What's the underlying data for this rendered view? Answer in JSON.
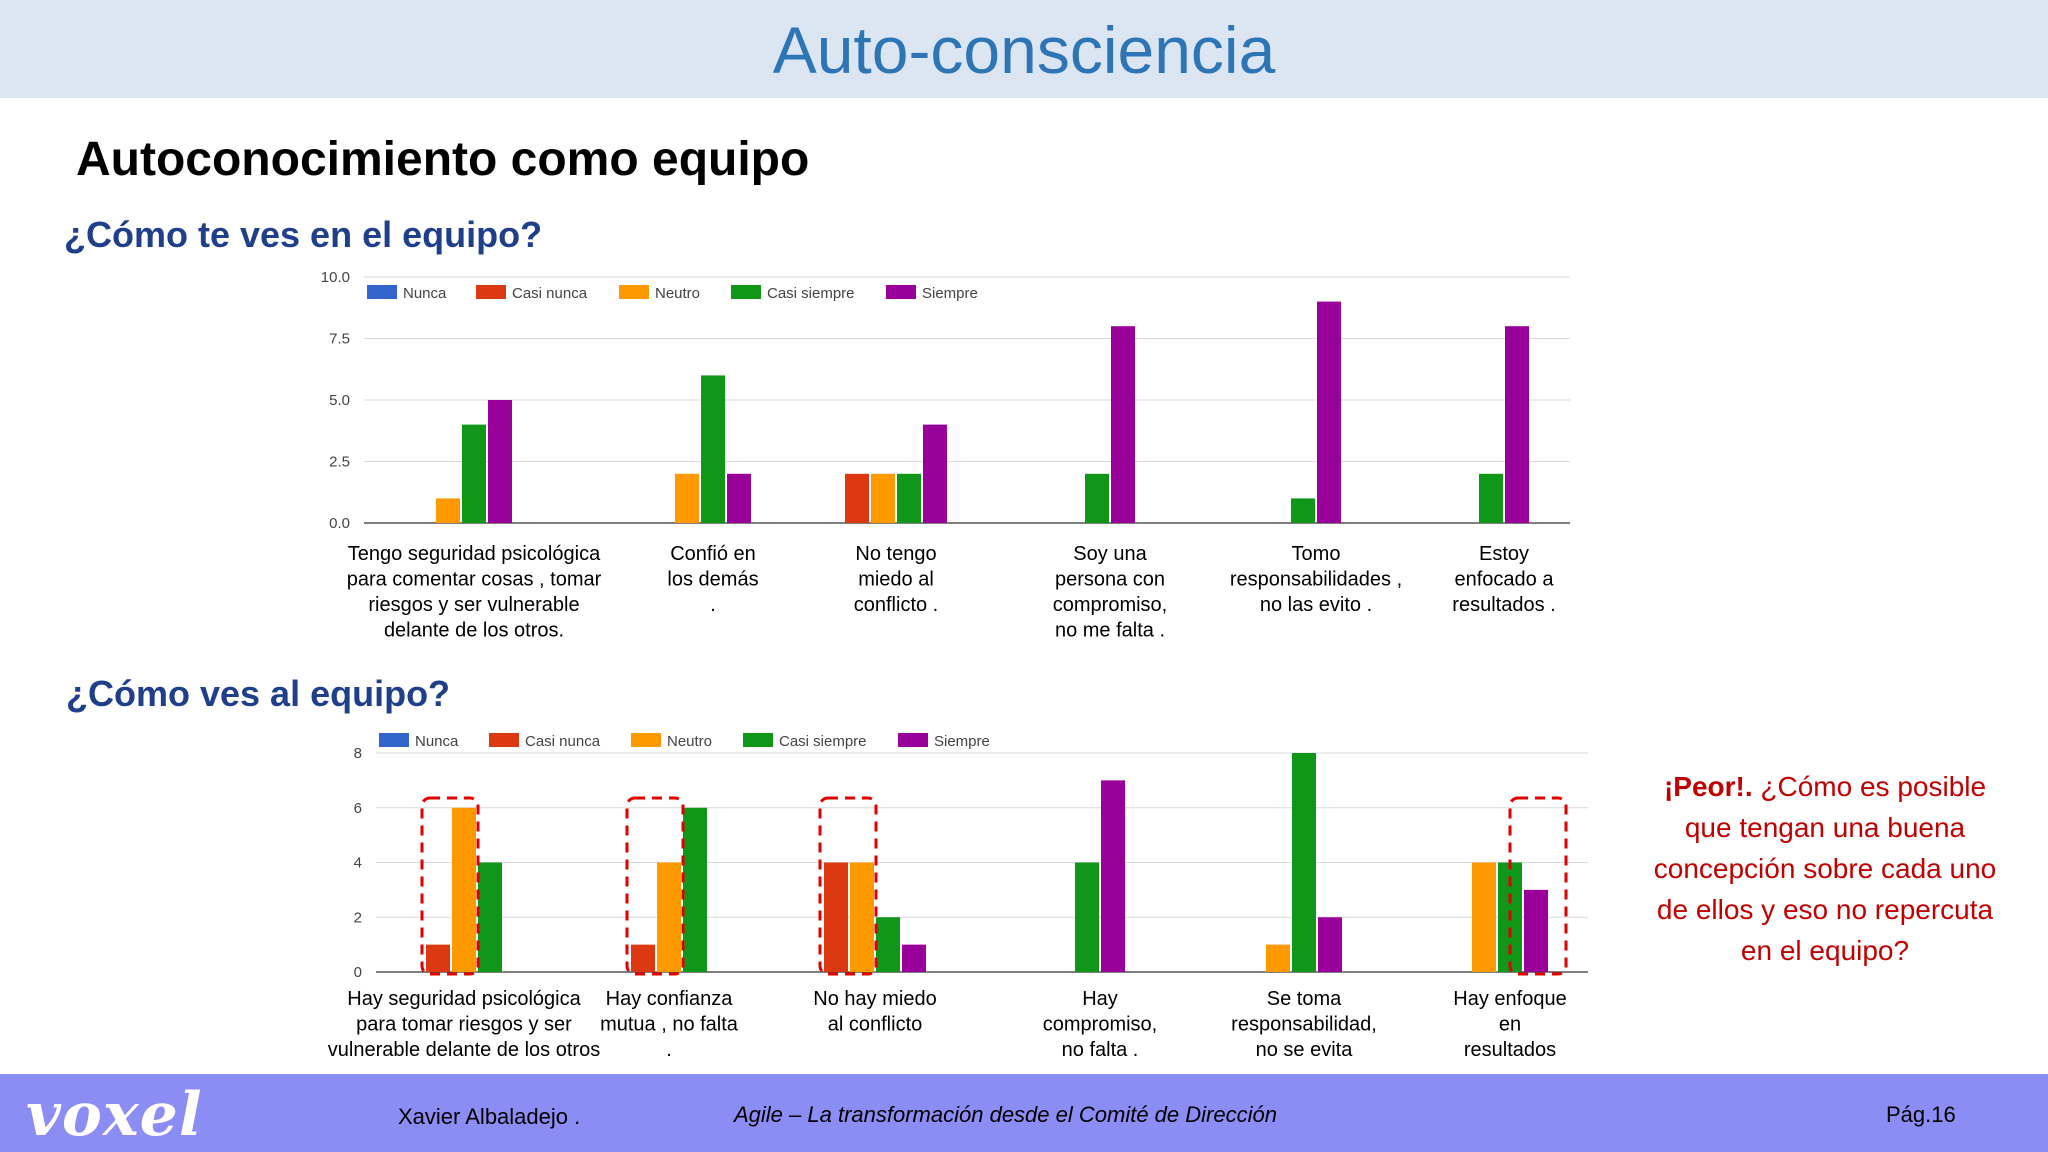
{
  "slide": {
    "title": "Auto-consciencia",
    "subtitle": "Autoconocimiento como equipo",
    "question1": "¿Cómo te ves en el equipo?",
    "question2": "¿Cómo ves al equipo?",
    "note_bold": "¡Peor!.",
    "note_text": "¿Cómo es posible que tengan una buena concepción sobre cada uno de ellos y eso no repercuta en el equipo?"
  },
  "footer": {
    "logo": "voxel",
    "author": "Xavier Albaladejo .",
    "title": "Agile – La transformación desde el Comité de Dirección",
    "page": "Pág.16"
  },
  "colors": {
    "Nunca": "#3366cc",
    "Casi nunca": "#dc3912",
    "Neutro": "#ff9900",
    "Casi siempre": "#109618",
    "Siempre": "#990099",
    "highlight": "#e00000"
  },
  "chart_data": [
    {
      "type": "bar",
      "legend_position": "top-left",
      "ylim": [
        0,
        10
      ],
      "yticks": [
        "0.0",
        "2.5",
        "5.0",
        "7.5",
        "10.0"
      ],
      "categories": [
        [
          "Tengo seguridad psicológica",
          "para comentar cosas , tomar",
          "riesgos y ser vulnerable",
          "delante de los otros."
        ],
        [
          "Confió en",
          "los demás",
          "."
        ],
        [
          "No tengo",
          "miedo al",
          "conflicto ."
        ],
        [
          "Soy una",
          "persona con",
          "compromiso,",
          "no me falta ."
        ],
        [
          "Tomo",
          "responsabilidades ,",
          "no las evito ."
        ],
        [
          "Estoy",
          "enfocado a",
          "resultados ."
        ]
      ],
      "series": [
        {
          "name": "Nunca",
          "values": [
            0,
            0,
            0,
            0,
            0,
            0
          ]
        },
        {
          "name": "Casi nunca",
          "values": [
            0,
            0,
            2,
            0,
            0,
            0
          ]
        },
        {
          "name": "Neutro",
          "values": [
            1,
            2,
            2,
            0,
            0,
            0
          ]
        },
        {
          "name": "Casi siempre",
          "values": [
            4,
            6,
            2,
            2,
            1,
            2
          ]
        },
        {
          "name": "Siempre",
          "values": [
            5,
            2,
            4,
            8,
            9,
            8
          ]
        }
      ]
    },
    {
      "type": "bar",
      "legend_position": "top-left",
      "ylim": [
        0,
        8
      ],
      "yticks": [
        "0",
        "2",
        "4",
        "6",
        "8"
      ],
      "categories": [
        [
          "Hay seguridad psicológica",
          "para tomar riesgos y ser",
          "vulnerable delante de los otros"
        ],
        [
          "Hay confianza",
          "mutua , no falta",
          "."
        ],
        [
          "No hay miedo",
          "al conflicto"
        ],
        [
          "Hay",
          "compromiso,",
          "no falta ."
        ],
        [
          "Se toma",
          "responsabilidad,",
          "no se evita"
        ],
        [
          "Hay enfoque",
          "en",
          "resultados"
        ]
      ],
      "series": [
        {
          "name": "Nunca",
          "values": [
            0,
            0,
            0,
            0,
            0,
            0
          ]
        },
        {
          "name": "Casi nunca",
          "values": [
            1,
            1,
            4,
            0,
            0,
            0
          ]
        },
        {
          "name": "Neutro",
          "values": [
            6,
            4,
            4,
            0,
            1,
            4
          ]
        },
        {
          "name": "Casi siempre",
          "values": [
            4,
            6,
            2,
            4,
            8,
            4
          ]
        },
        {
          "name": "Siempre",
          "values": [
            0,
            0,
            1,
            7,
            2,
            3
          ]
        }
      ],
      "highlighted_categories": [
        0,
        1,
        2,
        5
      ]
    }
  ]
}
